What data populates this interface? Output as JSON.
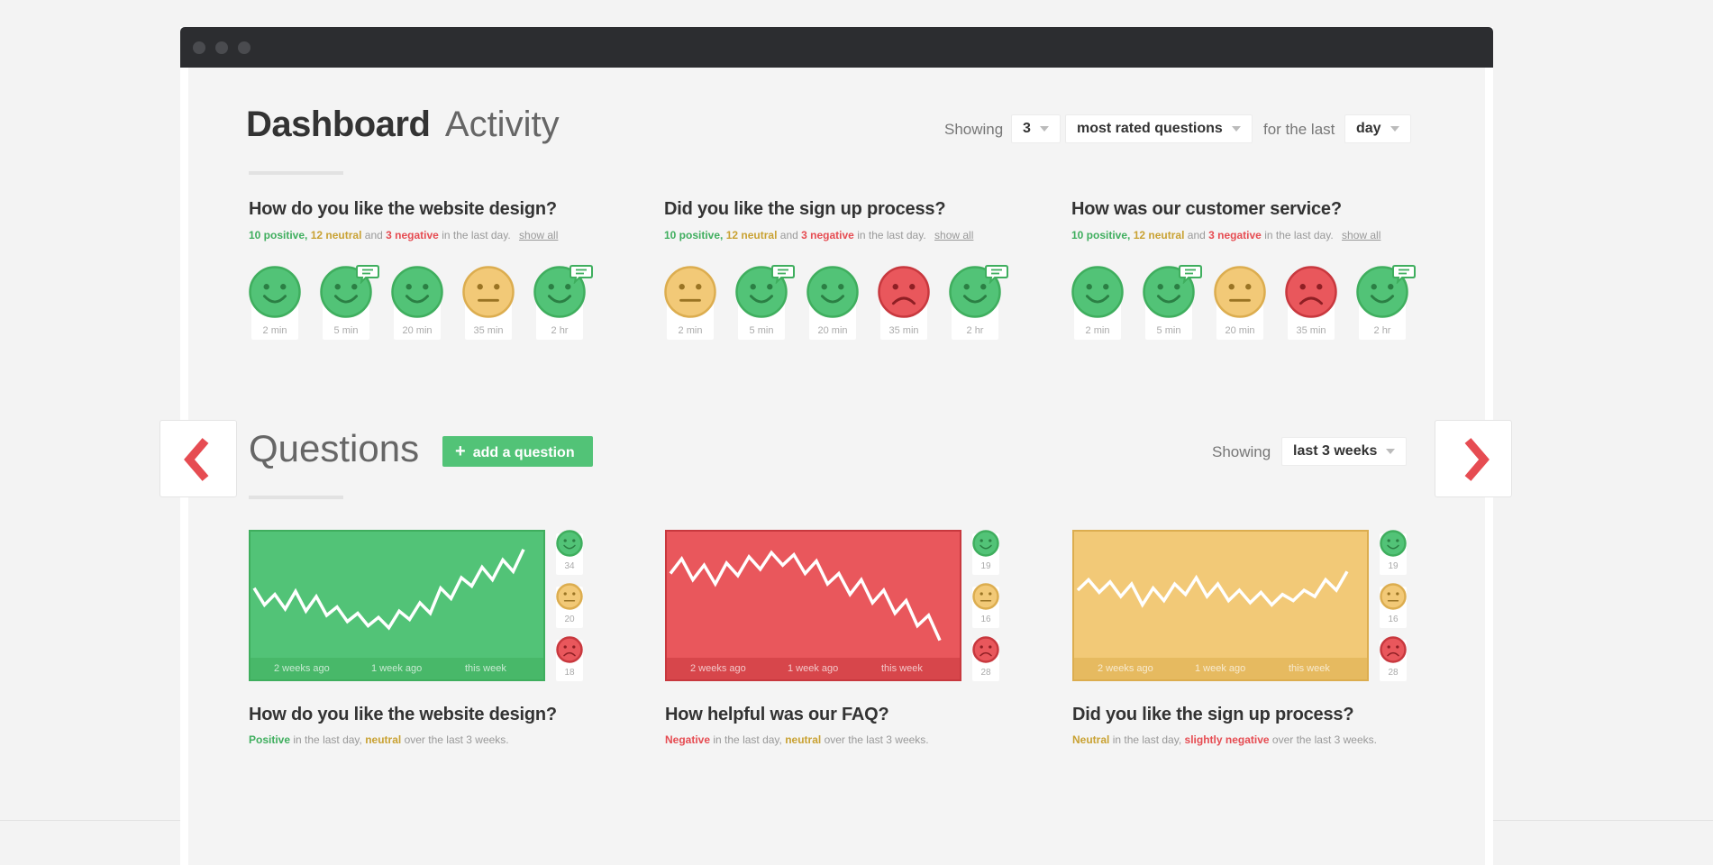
{
  "window": {
    "dots": 3
  },
  "activity": {
    "title_bold": "Dashboard",
    "title_light": "Activity",
    "showing_label": "Showing",
    "count_value": "3",
    "type_value": "most rated questions",
    "for_label": "for the last",
    "period_value": "day",
    "questions": [
      {
        "title": "How do you like the website design?",
        "positive": "10 positive,",
        "neutral": "12 neutral",
        "and": "and",
        "negative": "3 negative",
        "suffix": "in the last day.",
        "show_all": "show all",
        "ratings": [
          {
            "mood": "positive",
            "time": "2 min",
            "comment": false
          },
          {
            "mood": "positive",
            "time": "5 min",
            "comment": true
          },
          {
            "mood": "positive",
            "time": "20 min",
            "comment": false
          },
          {
            "mood": "neutral",
            "time": "35 min",
            "comment": false
          },
          {
            "mood": "positive",
            "time": "2 hr",
            "comment": true
          }
        ]
      },
      {
        "title": "Did you like the sign up process?",
        "positive": "10 positive,",
        "neutral": "12 neutral",
        "and": "and",
        "negative": "3 negative",
        "suffix": "in the last day.",
        "show_all": "show all",
        "ratings": [
          {
            "mood": "neutral",
            "time": "2 min",
            "comment": false
          },
          {
            "mood": "positive",
            "time": "5 min",
            "comment": true
          },
          {
            "mood": "positive",
            "time": "20 min",
            "comment": false
          },
          {
            "mood": "negative",
            "time": "35 min",
            "comment": false
          },
          {
            "mood": "positive",
            "time": "2 hr",
            "comment": true
          }
        ]
      },
      {
        "title": "How was our customer service?",
        "positive": "10 positive,",
        "neutral": "12 neutral",
        "and": "and",
        "negative": "3 negative",
        "suffix": "in the last day.",
        "show_all": "show all",
        "ratings": [
          {
            "mood": "positive",
            "time": "2 min",
            "comment": false
          },
          {
            "mood": "positive",
            "time": "5 min",
            "comment": true
          },
          {
            "mood": "neutral",
            "time": "20 min",
            "comment": false
          },
          {
            "mood": "negative",
            "time": "35 min",
            "comment": false
          },
          {
            "mood": "positive",
            "time": "2 hr",
            "comment": true
          }
        ]
      }
    ]
  },
  "questions_section": {
    "title": "Questions",
    "add_button": "add a question",
    "add_icon": "plus-icon",
    "showing_label": "Showing",
    "range_value": "last 3 weeks",
    "prev_icon": "chevron-left-icon",
    "next_icon": "chevron-right-icon",
    "cards": [
      {
        "title": "How do you like the website design?",
        "overall": "positive",
        "summary_a": "Positive",
        "summary_a_class": "g",
        "summary_b": "in the last day,",
        "summary_c": "neutral",
        "summary_c_class": "y",
        "summary_d": "over the last 3 weeks.",
        "counts": {
          "positive": "34",
          "neutral": "20",
          "negative": "18"
        },
        "x_labels": [
          "2 weeks ago",
          "1 week ago",
          "this week"
        ],
        "trend": [
          0.58,
          0.42,
          0.52,
          0.38,
          0.55,
          0.36,
          0.5,
          0.32,
          0.4,
          0.26,
          0.34,
          0.22,
          0.3,
          0.2,
          0.36,
          0.28,
          0.44,
          0.34,
          0.58,
          0.48,
          0.68,
          0.6,
          0.78,
          0.66,
          0.85,
          0.74,
          0.95
        ]
      },
      {
        "title": "How helpful was our FAQ?",
        "overall": "negative",
        "summary_a": "Negative",
        "summary_a_class": "r",
        "summary_b": "in the last day,",
        "summary_c": "neutral",
        "summary_c_class": "y",
        "summary_d": "over the last 3 weeks.",
        "counts": {
          "positive": "19",
          "neutral": "16",
          "negative": "28"
        },
        "x_labels": [
          "2 weeks ago",
          "1 week ago",
          "this week"
        ],
        "trend": [
          0.72,
          0.86,
          0.66,
          0.8,
          0.62,
          0.82,
          0.7,
          0.88,
          0.76,
          0.92,
          0.8,
          0.9,
          0.72,
          0.84,
          0.62,
          0.72,
          0.52,
          0.66,
          0.44,
          0.56,
          0.34,
          0.46,
          0.22,
          0.32,
          0.08
        ]
      },
      {
        "title": "Did you like the sign up process?",
        "overall": "neutral",
        "summary_a": "Neutral",
        "summary_a_class": "y",
        "summary_b": "in the last day,",
        "summary_c": "slightly negative",
        "summary_c_class": "r",
        "summary_d": "over the last 3 weeks.",
        "counts": {
          "positive": "19",
          "neutral": "16",
          "negative": "28"
        },
        "x_labels": [
          "2 weeks ago",
          "1 week ago",
          "this week"
        ],
        "trend": [
          0.56,
          0.66,
          0.54,
          0.64,
          0.5,
          0.62,
          0.42,
          0.58,
          0.46,
          0.62,
          0.52,
          0.68,
          0.5,
          0.62,
          0.46,
          0.56,
          0.44,
          0.54,
          0.42,
          0.52,
          0.46,
          0.56,
          0.5,
          0.66,
          0.56,
          0.74
        ]
      }
    ]
  },
  "colors": {
    "positive": "#52c377",
    "positive_dark": "#3fae5e",
    "neutral": "#f2c977",
    "neutral_dark": "#dcad4f",
    "negative": "#e9575c",
    "negative_dark": "#c8383e",
    "accent_red": "#e64c52"
  }
}
